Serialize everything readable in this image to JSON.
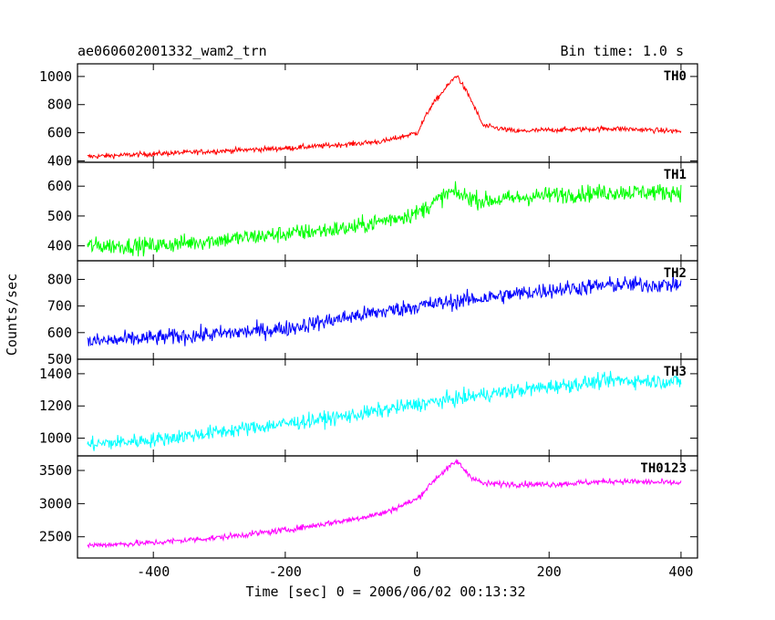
{
  "header": {
    "left_title": "ae060602001332_wam2_trn",
    "right_title": "Bin time: 1.0 s"
  },
  "chart_data": {
    "type": "line",
    "title": "ae060602001332_wam2_trn",
    "subtitle": "Bin time: 1.0 s",
    "xlabel": "Time [sec] 0 = 2006/06/02 00:13:32",
    "ylabel": "Counts/sec",
    "xlim": [
      -515,
      425
    ],
    "x_ticks": [
      -400,
      -200,
      0,
      200,
      400
    ],
    "grid": false,
    "panels": [
      {
        "name": "TH0",
        "color": "#ff0000",
        "ylim": [
          390,
          1090
        ],
        "y_ticks": [
          400,
          600,
          800,
          1000
        ],
        "noise": 18,
        "series": {
          "name": "TH0",
          "x": [
            -500,
            -400,
            -300,
            -200,
            -100,
            -50,
            0,
            20,
            40,
            60,
            80,
            100,
            150,
            200,
            300,
            400
          ],
          "values": [
            430,
            450,
            470,
            490,
            520,
            540,
            600,
            780,
            900,
            1010,
            850,
            650,
            610,
            620,
            630,
            610
          ]
        }
      },
      {
        "name": "TH1",
        "color": "#00ff00",
        "ylim": [
          350,
          680
        ],
        "y_ticks": [
          400,
          500,
          600
        ],
        "noise": 28,
        "series": {
          "name": "TH1",
          "x": [
            -500,
            -400,
            -300,
            -200,
            -100,
            0,
            50,
            100,
            200,
            300,
            400
          ],
          "values": [
            400,
            400,
            420,
            440,
            460,
            510,
            580,
            550,
            570,
            580,
            580
          ]
        }
      },
      {
        "name": "TH2",
        "color": "#0000ff",
        "ylim": [
          500,
          870
        ],
        "y_ticks": [
          500,
          600,
          700,
          800
        ],
        "noise": 30,
        "series": {
          "name": "TH2",
          "x": [
            -500,
            -400,
            -300,
            -200,
            -100,
            0,
            100,
            200,
            300,
            400
          ],
          "values": [
            565,
            580,
            595,
            615,
            660,
            700,
            730,
            760,
            780,
            780
          ]
        }
      },
      {
        "name": "TH3",
        "color": "#00ffff",
        "ylim": [
          890,
          1490
        ],
        "y_ticks": [
          1000,
          1200,
          1400
        ],
        "noise": 45,
        "series": {
          "name": "TH3",
          "x": [
            -500,
            -400,
            -300,
            -200,
            -100,
            0,
            100,
            200,
            300,
            400
          ],
          "values": [
            960,
            990,
            1040,
            1090,
            1140,
            1210,
            1270,
            1320,
            1360,
            1350
          ]
        }
      },
      {
        "name": "TH0123",
        "color": "#ff00ff",
        "ylim": [
          2180,
          3720
        ],
        "y_ticks": [
          2500,
          3000,
          3500
        ],
        "noise": 45,
        "series": {
          "name": "TH0123",
          "x": [
            -500,
            -400,
            -300,
            -200,
            -100,
            -50,
            0,
            30,
            60,
            80,
            100,
            200,
            300,
            400
          ],
          "values": [
            2370,
            2410,
            2490,
            2600,
            2760,
            2860,
            3070,
            3400,
            3640,
            3420,
            3300,
            3290,
            3340,
            3310
          ]
        }
      }
    ]
  }
}
